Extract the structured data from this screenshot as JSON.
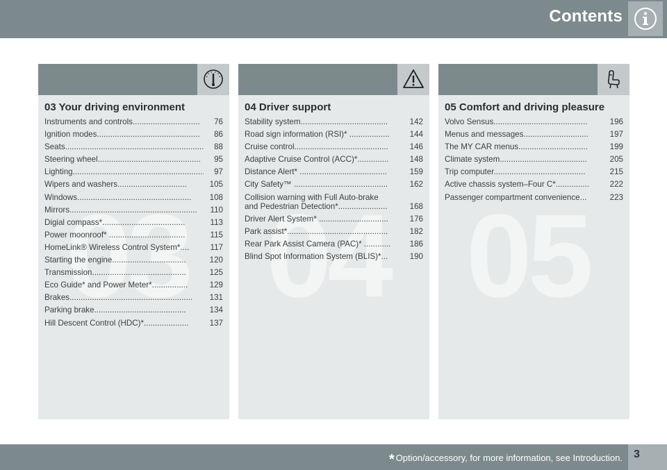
{
  "header": {
    "title": "Contents",
    "icon": "info-icon"
  },
  "footer": {
    "star": "*",
    "note": "Option/accessory, for more information, see Introduction.",
    "page_number": "3"
  },
  "sections": [
    {
      "icon": "gauge-icon",
      "watermark": "03",
      "title": "03 Your driving environment",
      "entries": [
        {
          "label": "Instruments and controls..............................",
          "page": "76"
        },
        {
          "label": "Ignition modes..............................................",
          "page": "86"
        },
        {
          "label": "Seats..........................................................................",
          "page": "88"
        },
        {
          "label": "Steering wheel..............................................",
          "page": "95"
        },
        {
          "label": "Lighting..............................................................",
          "page": "97"
        },
        {
          "label": "Wipers and washers...............................",
          "page": "105"
        },
        {
          "label": "Windows...................................................",
          "page": "108"
        },
        {
          "label": "Mirrors.........................................................",
          "page": "110"
        },
        {
          "label": "Digial compass*.....................................",
          "page": "113"
        },
        {
          "label": "Power moonroof* ..................................",
          "page": "115"
        },
        {
          "label": "HomeLink® Wireless Control System*....",
          "page": "117"
        },
        {
          "label": "Starting the engine.................................",
          "page": "120"
        },
        {
          "label": "Transmission..........................................",
          "page": "125"
        },
        {
          "label": "Eco Guide* and Power Meter*................",
          "page": "129"
        },
        {
          "label": "Brakes.......................................................",
          "page": "131"
        },
        {
          "label": "Parking brake.........................................",
          "page": "134"
        },
        {
          "label": "Hill Descent Control (HDC)*....................",
          "page": "137"
        }
      ]
    },
    {
      "icon": "warning-triangle-icon",
      "watermark": "04",
      "title": "04 Driver support",
      "entries": [
        {
          "label": "Stability system.......................................",
          "page": "142"
        },
        {
          "label": "Road sign information (RSI)* ..................",
          "page": "144"
        },
        {
          "label": "Cruise control..........................................",
          "page": "146"
        },
        {
          "label": "Adaptive Cruise Control (ACC)*..............",
          "page": "148"
        },
        {
          "label": "Distance Alert* .......................................",
          "page": "159"
        },
        {
          "label": "City Safety™ ..........................................",
          "page": "162"
        },
        {
          "label": "Collision warning with Full Auto-brake\nand Pedestrian Detection*......................",
          "page": "168"
        },
        {
          "label": "Driver Alert System* ...............................",
          "page": "176"
        },
        {
          "label": "Park assist*.............................................",
          "page": "182"
        },
        {
          "label": "Rear Park Assist Camera (PAC)* ............",
          "page": "186"
        },
        {
          "label": "Blind Spot Information System (BLIS)*...",
          "page": "190"
        }
      ]
    },
    {
      "icon": "seat-icon",
      "watermark": "05",
      "title": "05 Comfort and driving pleasure",
      "entries": [
        {
          "label": "Volvo Sensus..........................................",
          "page": "196"
        },
        {
          "label": "Menus and messages.............................",
          "page": "197"
        },
        {
          "label": "The MY CAR menus...............................",
          "page": "199"
        },
        {
          "label": "Climate system.......................................",
          "page": "205"
        },
        {
          "label": "Trip computer.........................................",
          "page": "215"
        },
        {
          "label": "Active chassis system–Four C*...............",
          "page": "222"
        },
        {
          "label": "Passenger compartment convenience...",
          "page": "223"
        }
      ]
    }
  ]
}
